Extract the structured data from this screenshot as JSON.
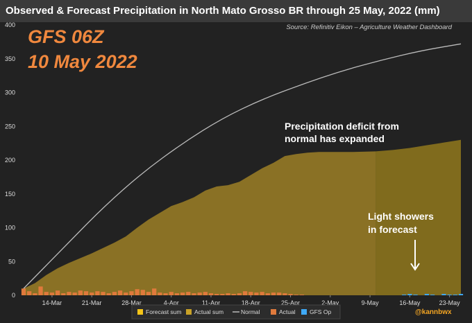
{
  "header": {
    "title": "Observed & Forecast Precipitation in North Mato Grosso BR through 25 May, 2022 (mm)"
  },
  "source_note": "Source: Refinitiv Eikon – Agriculture Weather Dashboard",
  "model_label": {
    "line1": "GFS 06Z",
    "line2": "10 May 2022"
  },
  "annotations": [
    {
      "lines": [
        "Precipitation deficit from",
        "normal has expanded"
      ]
    },
    {
      "lines": [
        "Light showers",
        "in forecast"
      ]
    }
  ],
  "handle": "@kannbwx",
  "colors": {
    "background": "#222222",
    "title_bar": "#3a3a3a",
    "actual_sum": "#c9a227",
    "forecast_sum": "#f5c518",
    "normal": "#bbbbbb",
    "actual_bar": "#e07a3c",
    "gfs_op": "#3fa9f5",
    "model_text": "#f0883e"
  },
  "chart_data": {
    "type": "area",
    "x_start": "2022-03-09",
    "x_end": "2022-05-25",
    "x_ticks": [
      "14-Mar",
      "21-Mar",
      "28-Mar",
      "4-Apr",
      "11-Apr",
      "18-Apr",
      "25-Apr",
      "2-May",
      "9-May",
      "16-May",
      "23-May"
    ],
    "x_tick_dates": [
      "2022-03-14",
      "2022-03-21",
      "2022-03-28",
      "2022-04-04",
      "2022-04-11",
      "2022-04-18",
      "2022-04-25",
      "2022-05-02",
      "2022-05-09",
      "2022-05-16",
      "2022-05-23"
    ],
    "ylim": [
      0,
      400
    ],
    "y_ticks": [
      0,
      50,
      100,
      150,
      200,
      250,
      300,
      350,
      400
    ],
    "grid": false,
    "legend": [
      "Forecast sum",
      "Actual sum",
      "Normal",
      "Actual",
      "GFS Op"
    ],
    "legend_placement": "bottom",
    "series": [
      {
        "name": "Actual sum",
        "points": [
          [
            "2022-03-09",
            10
          ],
          [
            "2022-03-11",
            18
          ],
          [
            "2022-03-13",
            30
          ],
          [
            "2022-03-15",
            40
          ],
          [
            "2022-03-17",
            48
          ],
          [
            "2022-03-19",
            55
          ],
          [
            "2022-03-21",
            62
          ],
          [
            "2022-03-23",
            70
          ],
          [
            "2022-03-25",
            78
          ],
          [
            "2022-03-27",
            87
          ],
          [
            "2022-03-29",
            100
          ],
          [
            "2022-03-31",
            112
          ],
          [
            "2022-04-02",
            122
          ],
          [
            "2022-04-04",
            132
          ],
          [
            "2022-04-06",
            138
          ],
          [
            "2022-04-08",
            145
          ],
          [
            "2022-04-10",
            155
          ],
          [
            "2022-04-12",
            161
          ],
          [
            "2022-04-14",
            163
          ],
          [
            "2022-04-16",
            168
          ],
          [
            "2022-04-18",
            178
          ],
          [
            "2022-04-20",
            188
          ],
          [
            "2022-04-22",
            196
          ],
          [
            "2022-04-24",
            206
          ],
          [
            "2022-04-26",
            209
          ],
          [
            "2022-04-28",
            211
          ],
          [
            "2022-04-30",
            212
          ],
          [
            "2022-05-02",
            212
          ],
          [
            "2022-05-06",
            212
          ],
          [
            "2022-05-10",
            213
          ]
        ]
      },
      {
        "name": "Forecast sum",
        "points": [
          [
            "2022-05-10",
            213
          ],
          [
            "2022-05-13",
            215
          ],
          [
            "2022-05-16",
            218
          ],
          [
            "2022-05-19",
            222
          ],
          [
            "2022-05-22",
            226
          ],
          [
            "2022-05-25",
            230
          ]
        ]
      },
      {
        "name": "Normal",
        "points": [
          [
            "2022-03-09",
            10
          ],
          [
            "2022-03-16",
            70
          ],
          [
            "2022-03-23",
            130
          ],
          [
            "2022-03-30",
            182
          ],
          [
            "2022-04-06",
            225
          ],
          [
            "2022-04-13",
            262
          ],
          [
            "2022-04-20",
            290
          ],
          [
            "2022-04-27",
            312
          ],
          [
            "2022-05-04",
            332
          ],
          [
            "2022-05-11",
            348
          ],
          [
            "2022-05-18",
            362
          ],
          [
            "2022-05-25",
            372
          ]
        ]
      },
      {
        "name": "Actual",
        "type": "bar",
        "points": [
          [
            "2022-03-09",
            10
          ],
          [
            "2022-03-10",
            6
          ],
          [
            "2022-03-11",
            3
          ],
          [
            "2022-03-12",
            13
          ],
          [
            "2022-03-13",
            5
          ],
          [
            "2022-03-14",
            4
          ],
          [
            "2022-03-15",
            7
          ],
          [
            "2022-03-16",
            3
          ],
          [
            "2022-03-17",
            5
          ],
          [
            "2022-03-18",
            4
          ],
          [
            "2022-03-19",
            7
          ],
          [
            "2022-03-20",
            6
          ],
          [
            "2022-03-21",
            4
          ],
          [
            "2022-03-22",
            6
          ],
          [
            "2022-03-23",
            5
          ],
          [
            "2022-03-24",
            3
          ],
          [
            "2022-03-25",
            5
          ],
          [
            "2022-03-26",
            7
          ],
          [
            "2022-03-27",
            4
          ],
          [
            "2022-03-28",
            6
          ],
          [
            "2022-03-29",
            9
          ],
          [
            "2022-03-30",
            8
          ],
          [
            "2022-03-31",
            5
          ],
          [
            "2022-04-01",
            10
          ],
          [
            "2022-04-02",
            4
          ],
          [
            "2022-04-03",
            3
          ],
          [
            "2022-04-04",
            5
          ],
          [
            "2022-04-05",
            3
          ],
          [
            "2022-04-06",
            4
          ],
          [
            "2022-04-07",
            5
          ],
          [
            "2022-04-08",
            3
          ],
          [
            "2022-04-09",
            4
          ],
          [
            "2022-04-10",
            5
          ],
          [
            "2022-04-11",
            3
          ],
          [
            "2022-04-12",
            2
          ],
          [
            "2022-04-13",
            2
          ],
          [
            "2022-04-14",
            3
          ],
          [
            "2022-04-15",
            2
          ],
          [
            "2022-04-16",
            3
          ],
          [
            "2022-04-17",
            6
          ],
          [
            "2022-04-18",
            5
          ],
          [
            "2022-04-19",
            4
          ],
          [
            "2022-04-20",
            5
          ],
          [
            "2022-04-21",
            3
          ],
          [
            "2022-04-22",
            4
          ],
          [
            "2022-04-23",
            4
          ],
          [
            "2022-04-24",
            3
          ],
          [
            "2022-04-25",
            2
          ],
          [
            "2022-04-26",
            1
          ],
          [
            "2022-04-27",
            1
          ]
        ]
      },
      {
        "name": "GFS Op",
        "type": "bar",
        "points": [
          [
            "2022-05-15",
            1
          ],
          [
            "2022-05-16",
            2
          ],
          [
            "2022-05-17",
            1
          ],
          [
            "2022-05-19",
            2
          ],
          [
            "2022-05-20",
            1
          ],
          [
            "2022-05-22",
            2
          ],
          [
            "2022-05-23",
            1
          ],
          [
            "2022-05-24",
            1
          ],
          [
            "2022-05-25",
            2
          ]
        ]
      }
    ]
  }
}
